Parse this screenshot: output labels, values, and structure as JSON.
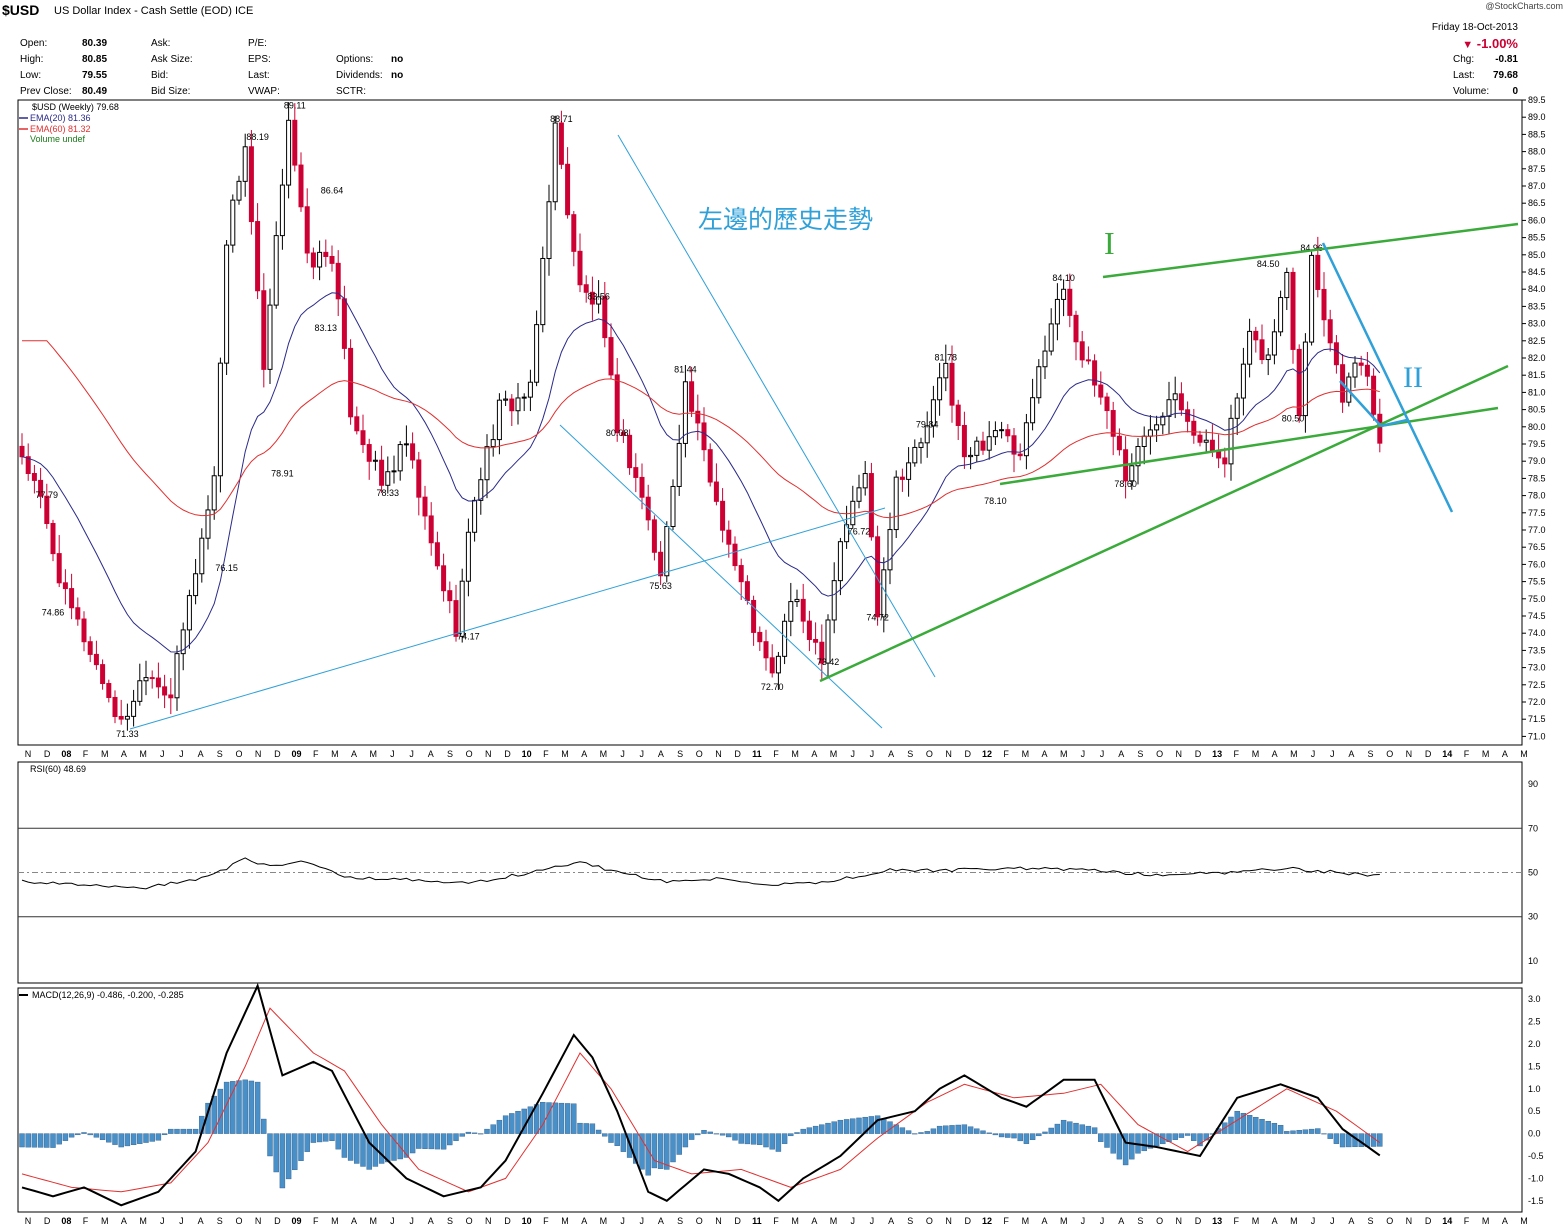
{
  "header": {
    "symbol": "$USD",
    "description": "US Dollar Index - Cash Settle (EOD) ICE",
    "quote_labels": [
      "Open:",
      "High:",
      "Low:",
      "Prev Close:"
    ],
    "quote_values": [
      "80.39",
      "80.85",
      "79.55",
      "80.49"
    ],
    "mid_labels": [
      "Ask:",
      "Ask Size:",
      "Bid:",
      "Bid Size:"
    ],
    "fund_labels": [
      "P/E:",
      "EPS:",
      "Last:",
      "VWAP:"
    ],
    "opt_labels": [
      "Options:",
      "Dividends:",
      "SCTR:"
    ],
    "opt_values": [
      "no",
      "no",
      ""
    ],
    "date": "Friday  18-Oct-2013",
    "pct": "-1.00%",
    "chg_label": "Chg:",
    "chg": "-0.81",
    "last_label": "Last:",
    "last": "79.68",
    "vol_label": "Volume:",
    "vol": "0",
    "credit": "@StockCharts.com"
  },
  "colors": {
    "up": "#000000",
    "down": "#cc0033",
    "ema20": "#2a2a8a",
    "ema60": "#e03030",
    "annot_blue": "#2fa0d8",
    "annot_green": "#3aaa3a",
    "macd_hist": "#4a90c8"
  },
  "chart_data": [
    {
      "type": "candlestick",
      "title": "$USD (Weekly) 79.68",
      "legend": [
        "EMA(20) 81.36",
        "EMA(60) 81.32",
        "Volume undef"
      ],
      "ylim": [
        70.75,
        89.5
      ],
      "yticks": [
        "71.0",
        "71.5",
        "72.0",
        "72.5",
        "73.0",
        "73.5",
        "74.0",
        "74.5",
        "75.0",
        "75.5",
        "76.0",
        "76.5",
        "77.0",
        "77.5",
        "78.0",
        "78.5",
        "79.0",
        "79.5",
        "80.0",
        "80.5",
        "81.0",
        "81.5",
        "82.0",
        "82.5",
        "83.0",
        "83.5",
        "84.0",
        "84.5",
        "85.0",
        "85.5",
        "86.0",
        "86.5",
        "87.0",
        "87.5",
        "88.0",
        "88.5",
        "89.0",
        "89.5"
      ],
      "x_axis_labels": [
        "N",
        "D",
        "08",
        "F",
        "M",
        "A",
        "M",
        "J",
        "J",
        "A",
        "S",
        "O",
        "N",
        "D",
        "09",
        "F",
        "M",
        "A",
        "M",
        "J",
        "J",
        "A",
        "S",
        "O",
        "N",
        "D",
        "10",
        "F",
        "M",
        "A",
        "M",
        "J",
        "J",
        "A",
        "S",
        "O",
        "N",
        "D",
        "11",
        "F",
        "M",
        "A",
        "M",
        "J",
        "J",
        "A",
        "S",
        "O",
        "N",
        "D",
        "12",
        "F",
        "M",
        "A",
        "M",
        "J",
        "J",
        "A",
        "S",
        "O",
        "N",
        "D",
        "13",
        "F",
        "M",
        "A",
        "M",
        "J",
        "J",
        "A",
        "S",
        "O",
        "N",
        "D",
        "14",
        "F",
        "M",
        "A",
        "M"
      ],
      "price_anchors": [
        [
          0,
          79.2
        ],
        [
          3,
          77.8
        ],
        [
          7,
          75.0
        ],
        [
          11,
          73.5
        ],
        [
          16,
          71.3
        ],
        [
          20,
          73.0
        ],
        [
          24,
          72.2
        ],
        [
          27,
          75.0
        ],
        [
          31,
          78.5
        ],
        [
          33,
          85.5
        ],
        [
          36,
          88.2
        ],
        [
          39,
          81.5
        ],
        [
          43,
          89.1
        ],
        [
          46,
          84.8
        ],
        [
          50,
          85.0
        ],
        [
          53,
          80.5
        ],
        [
          58,
          78.3
        ],
        [
          62,
          79.5
        ],
        [
          66,
          76.5
        ],
        [
          70,
          74.2
        ],
        [
          73,
          78.0
        ],
        [
          77,
          80.5
        ],
        [
          82,
          81.0
        ],
        [
          86,
          88.7
        ],
        [
          90,
          84.0
        ],
        [
          93,
          83.5
        ],
        [
          96,
          80.08
        ],
        [
          100,
          78.0
        ],
        [
          103,
          75.63
        ],
        [
          107,
          81.2
        ],
        [
          111,
          78.5
        ],
        [
          115,
          76.0
        ],
        [
          119,
          73.6
        ],
        [
          121,
          72.7
        ],
        [
          124,
          75.0
        ],
        [
          129,
          73.42
        ],
        [
          132,
          76.72
        ],
        [
          136,
          78.7
        ],
        [
          138,
          74.72
        ],
        [
          141,
          78.5
        ],
        [
          145,
          79.5
        ],
        [
          149,
          81.78
        ],
        [
          152,
          79.0
        ],
        [
          157,
          80.0
        ],
        [
          161,
          79.0
        ],
        [
          165,
          82.5
        ],
        [
          168,
          84.1
        ],
        [
          171,
          82.0
        ],
        [
          175,
          80.5
        ],
        [
          178,
          78.6
        ],
        [
          182,
          80.0
        ],
        [
          186,
          81.2
        ],
        [
          190,
          79.5
        ],
        [
          194,
          79.2
        ],
        [
          198,
          82.5
        ],
        [
          201,
          82.0
        ],
        [
          204,
          84.5
        ],
        [
          206,
          80.5
        ],
        [
          208,
          84.96
        ],
        [
          211,
          82.5
        ],
        [
          213,
          81.0
        ],
        [
          216,
          82.0
        ],
        [
          219,
          79.68
        ]
      ],
      "annotations": [
        "71.33",
        "74.86",
        "77.79",
        "76.15",
        "88.19",
        "78.91",
        "89.11",
        "86.64",
        "83.13",
        "78.33",
        "74.17",
        "88.71",
        "83.56",
        "80.08",
        "81.44",
        "75.63",
        "76.72",
        "72.70",
        "73.42",
        "79.84",
        "74.72",
        "81.78",
        "78.10",
        "84.10",
        "78.60",
        "84.50",
        "84.96",
        "80.50"
      ],
      "chinese_annotation": "左邊的歷史走勢",
      "wave_labels": [
        "I",
        "II"
      ]
    },
    {
      "type": "line",
      "title": "RSI(60) 48.69",
      "ylim": [
        0,
        100
      ],
      "yticks": [
        "10",
        "30",
        "50",
        "70",
        "90"
      ],
      "reference_lines": [
        30,
        50,
        70
      ],
      "anchors": [
        [
          0,
          46
        ],
        [
          10,
          44
        ],
        [
          20,
          43
        ],
        [
          30,
          48
        ],
        [
          36,
          56
        ],
        [
          40,
          53
        ],
        [
          46,
          55
        ],
        [
          52,
          48
        ],
        [
          60,
          47
        ],
        [
          72,
          45
        ],
        [
          84,
          51
        ],
        [
          90,
          55
        ],
        [
          96,
          50
        ],
        [
          104,
          46
        ],
        [
          112,
          47
        ],
        [
          120,
          44
        ],
        [
          130,
          46
        ],
        [
          140,
          51
        ],
        [
          150,
          51
        ],
        [
          160,
          52
        ],
        [
          172,
          51
        ],
        [
          182,
          49
        ],
        [
          194,
          50
        ],
        [
          204,
          52
        ],
        [
          212,
          50
        ],
        [
          219,
          48.69
        ]
      ]
    },
    {
      "type": "macd",
      "title": "MACD(12,26,9) -0.486, -0.200, -0.285",
      "ylim": [
        -1.75,
        3.25
      ],
      "yticks": [
        "-1.5",
        "-1.0",
        "-0.5",
        "0.0",
        "0.5",
        "1.0",
        "1.5",
        "2.0",
        "2.5",
        "3.0"
      ],
      "macd_anchors": [
        [
          0,
          -1.2
        ],
        [
          5,
          -1.4
        ],
        [
          10,
          -1.2
        ],
        [
          16,
          -1.6
        ],
        [
          22,
          -1.3
        ],
        [
          28,
          -0.4
        ],
        [
          33,
          1.8
        ],
        [
          38,
          3.3
        ],
        [
          42,
          1.3
        ],
        [
          47,
          1.6
        ],
        [
          50,
          1.4
        ],
        [
          56,
          -0.2
        ],
        [
          62,
          -1.0
        ],
        [
          68,
          -1.4
        ],
        [
          74,
          -1.2
        ],
        [
          78,
          -0.6
        ],
        [
          84,
          0.9
        ],
        [
          89,
          2.2
        ],
        [
          92,
          1.7
        ],
        [
          96,
          0.5
        ],
        [
          101,
          -1.3
        ],
        [
          104,
          -1.5
        ],
        [
          110,
          -0.8
        ],
        [
          114,
          -0.9
        ],
        [
          119,
          -1.2
        ],
        [
          122,
          -1.5
        ],
        [
          126,
          -1.0
        ],
        [
          132,
          -0.5
        ],
        [
          138,
          0.3
        ],
        [
          144,
          0.5
        ],
        [
          148,
          1.0
        ],
        [
          152,
          1.3
        ],
        [
          158,
          0.8
        ],
        [
          162,
          0.6
        ],
        [
          168,
          1.2
        ],
        [
          173,
          1.2
        ],
        [
          178,
          -0.2
        ],
        [
          183,
          -0.3
        ],
        [
          190,
          -0.5
        ],
        [
          196,
          0.8
        ],
        [
          203,
          1.1
        ],
        [
          209,
          0.8
        ],
        [
          213,
          0.1
        ],
        [
          219,
          -0.486
        ]
      ],
      "signal_anchors": [
        [
          0,
          -0.9
        ],
        [
          8,
          -1.2
        ],
        [
          16,
          -1.3
        ],
        [
          24,
          -1.1
        ],
        [
          30,
          -0.2
        ],
        [
          36,
          1.5
        ],
        [
          40,
          2.8
        ],
        [
          47,
          1.8
        ],
        [
          52,
          1.4
        ],
        [
          58,
          0.2
        ],
        [
          64,
          -0.8
        ],
        [
          72,
          -1.3
        ],
        [
          78,
          -1.0
        ],
        [
          84,
          0.2
        ],
        [
          90,
          1.8
        ],
        [
          95,
          1.0
        ],
        [
          102,
          -0.6
        ],
        [
          108,
          -0.9
        ],
        [
          116,
          -0.8
        ],
        [
          124,
          -1.2
        ],
        [
          132,
          -0.8
        ],
        [
          138,
          -0.1
        ],
        [
          146,
          0.7
        ],
        [
          152,
          1.1
        ],
        [
          160,
          0.8
        ],
        [
          168,
          0.9
        ],
        [
          174,
          1.1
        ],
        [
          180,
          0.2
        ],
        [
          188,
          -0.4
        ],
        [
          196,
          0.3
        ],
        [
          204,
          1.0
        ],
        [
          212,
          0.5
        ],
        [
          219,
          -0.2
        ]
      ]
    }
  ]
}
